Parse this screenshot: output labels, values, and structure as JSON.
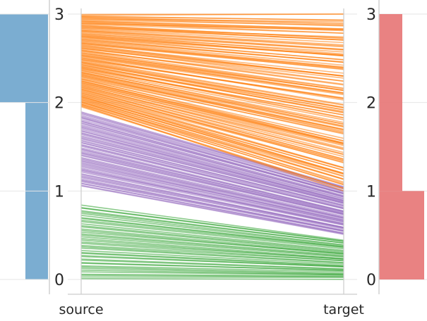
{
  "chart_data": {
    "type": "line",
    "title": "",
    "xlabel": "",
    "ylabel": "",
    "x_categories": [
      "source",
      "target"
    ],
    "ylim": [
      0,
      3
    ],
    "y_ticks": [
      0,
      1,
      2,
      3
    ],
    "grid": true,
    "colors": {
      "group_low": "#2ca02c",
      "group_mid": "#9467bd",
      "group_high": "#ff7f0e",
      "source_hist": "#74a9cf",
      "target_hist": "#e87b7b",
      "axis": "#cccccc"
    },
    "groups": [
      {
        "key": "group_low",
        "source_range": [
          0.0,
          0.85
        ],
        "target_range": [
          0.0,
          0.45
        ],
        "count": 45
      },
      {
        "key": "group_mid",
        "source_range": [
          1.05,
          1.9
        ],
        "target_range": [
          0.5,
          1.05
        ],
        "count": 70
      },
      {
        "key": "group_high",
        "source_range": [
          1.95,
          3.0
        ],
        "target_range": [
          1.0,
          3.0
        ],
        "count": 140
      }
    ],
    "source_hist": {
      "bins": [
        [
          0,
          2
        ],
        [
          2,
          3
        ]
      ],
      "relative_widths": [
        1.0,
        1.0
      ],
      "offsets": [
        0.06,
        0.0
      ]
    },
    "target_hist": {
      "bins": [
        [
          0,
          1
        ],
        [
          1,
          3
        ]
      ],
      "relative_widths": [
        1.0,
        0.5
      ]
    }
  }
}
